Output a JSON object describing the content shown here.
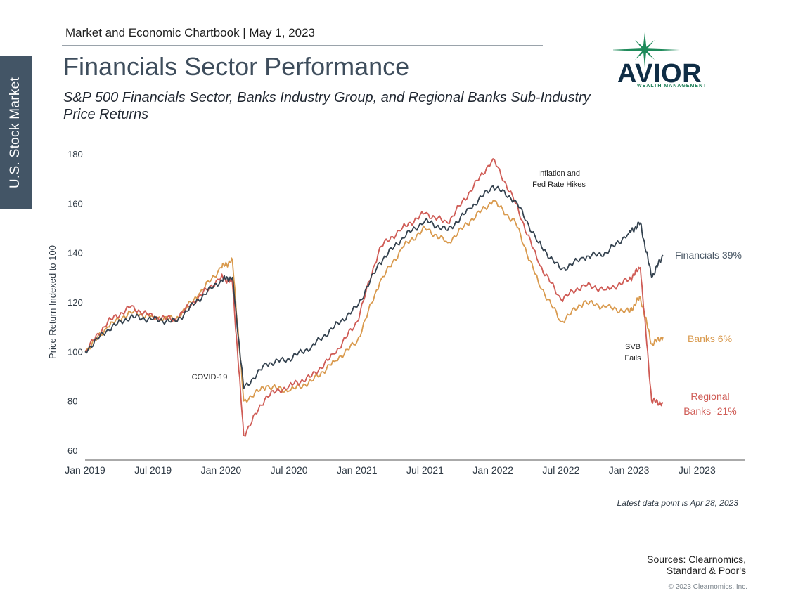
{
  "sidebar": {
    "label": "U.S. Stock Market"
  },
  "header": {
    "chartbook": "Market and Economic Chartbook | May 1, 2023"
  },
  "logo": {
    "name": "AVIOR",
    "tagline": "WEALTH MANAGEMENT",
    "colors": {
      "star": "#1e8a5a",
      "text": "#0f2d45"
    }
  },
  "footer": {
    "latest": "Latest data point is Apr 28, 2023",
    "sources_line1": "Sources: Clearnomics,",
    "sources_line2": "Standard & Poor's",
    "copyright": "© 2023 Clearnomics, Inc."
  },
  "chart_data": {
    "type": "line",
    "title": "Financials Sector Performance",
    "subtitle": "S&P 500 Financials Sector, Banks Industry Group, and Regional Banks Sub-Industry Price Returns",
    "ylabel": "Price Return Indexed to 100",
    "xlabel": "",
    "ylim": [
      60,
      185
    ],
    "yticks": [
      60,
      80,
      100,
      120,
      140,
      160,
      180
    ],
    "xticks": [
      "Jan 2019",
      "Jul 2019",
      "Jan 2020",
      "Jul 2020",
      "Jan 2021",
      "Jul 2021",
      "Jan 2022",
      "Jul 2022",
      "Jan 2023",
      "Jul 2023"
    ],
    "x": [
      "2019-01",
      "2019-03",
      "2019-05",
      "2019-07",
      "2019-09",
      "2019-11",
      "2020-01",
      "2020-02",
      "2020-03",
      "2020-05",
      "2020-07",
      "2020-09",
      "2020-11",
      "2021-01",
      "2021-03",
      "2021-05",
      "2021-07",
      "2021-09",
      "2021-11",
      "2022-01",
      "2022-03",
      "2022-05",
      "2022-07",
      "2022-09",
      "2022-11",
      "2023-01",
      "2023-02",
      "2023-03",
      "2023-04"
    ],
    "series": [
      {
        "name": "Financials",
        "end_label": "Financials 39%",
        "color": "#34424f",
        "values": [
          100,
          109,
          114,
          113,
          112,
          121,
          129,
          130,
          85,
          95,
          97,
          102,
          110,
          118,
          136,
          146,
          153,
          149,
          158,
          167,
          161,
          144,
          133,
          138,
          140,
          148,
          152,
          130,
          139
        ]
      },
      {
        "name": "Banks",
        "end_label": "Banks 6%",
        "color": "#d99a4e",
        "values": [
          100,
          110,
          116,
          114,
          113,
          123,
          134,
          137,
          80,
          86,
          84,
          88,
          96,
          104,
          128,
          142,
          150,
          144,
          153,
          161,
          152,
          128,
          112,
          120,
          118,
          116,
          122,
          103,
          106
        ]
      },
      {
        "name": "Regional Banks",
        "end_label": "Regional Banks -21%",
        "color": "#cf5b55",
        "values": [
          100,
          112,
          118,
          114,
          113,
          122,
          130,
          128,
          66,
          82,
          86,
          90,
          99,
          112,
          142,
          150,
          156,
          152,
          165,
          178,
          160,
          136,
          121,
          127,
          125,
          129,
          134,
          80,
          79
        ]
      }
    ],
    "annotations": [
      {
        "text": "COVID-19",
        "x": "2020-03"
      },
      {
        "text_line1": "Inflation and",
        "text_line2": "Fed Rate Hikes",
        "x": "2022-02"
      },
      {
        "text_line1": "SVB",
        "text_line2": "Fails",
        "x": "2023-03"
      }
    ],
    "grid": false,
    "legend": "end-of-line labels"
  }
}
